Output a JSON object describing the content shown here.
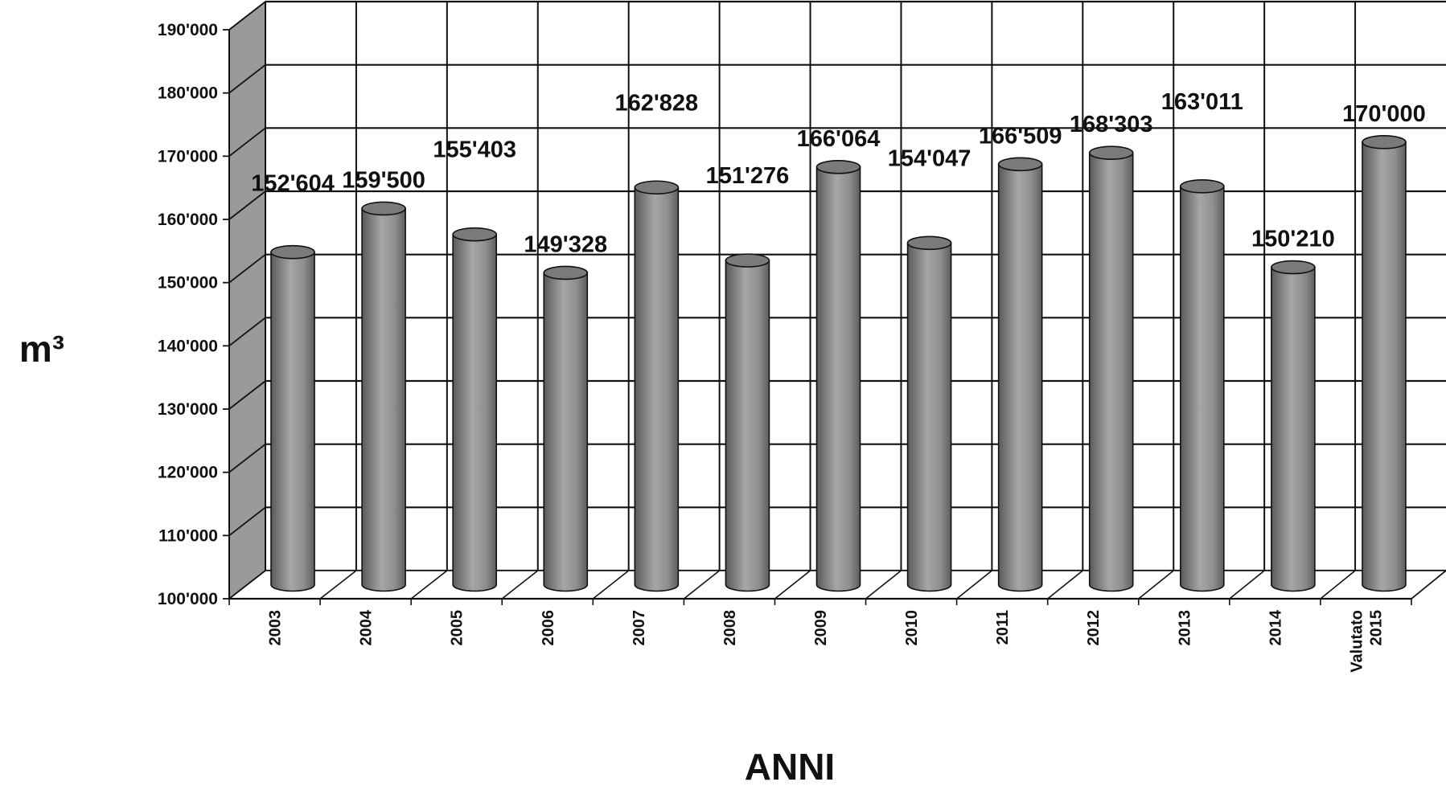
{
  "chart_data": {
    "type": "bar",
    "style": "3d-cylinder",
    "xlabel": "ANNI",
    "ylabel": "m³",
    "ylim": [
      100000,
      190000
    ],
    "yticks": [
      100000,
      110000,
      120000,
      130000,
      140000,
      150000,
      160000,
      170000,
      180000,
      190000
    ],
    "ytick_labels": [
      "100'000",
      "110'000",
      "120'000",
      "130'000",
      "140'000",
      "150'000",
      "160'000",
      "170'000",
      "180'000",
      "190'000"
    ],
    "grid": true,
    "categories": [
      [
        "2003"
      ],
      [
        "2004"
      ],
      [
        "2005"
      ],
      [
        "2006"
      ],
      [
        "2007"
      ],
      [
        "2008"
      ],
      [
        "2009"
      ],
      [
        "2010"
      ],
      [
        "2011"
      ],
      [
        "2012"
      ],
      [
        "2013"
      ],
      [
        "2014"
      ],
      [
        "Valutato",
        "2015"
      ]
    ],
    "values": [
      152604,
      159500,
      155403,
      149328,
      162828,
      151276,
      166064,
      154047,
      166509,
      168303,
      163011,
      150210,
      170000
    ],
    "value_labels": [
      "152'604",
      "159'500",
      "155'403",
      "149'328",
      "162'828",
      "151'276",
      "166'064",
      "154'047",
      "166'509",
      "168'303",
      "163'011",
      "150'210",
      "170'000"
    ],
    "label_offsets": [
      2.5,
      0,
      3.5,
      0,
      3.5,
      3.5,
      0,
      3.5,
      0,
      0,
      3.5,
      0,
      0
    ],
    "colors": {
      "bar": "#8c8c8c",
      "grid": "#111111",
      "wall": "#9a9a9a"
    }
  }
}
